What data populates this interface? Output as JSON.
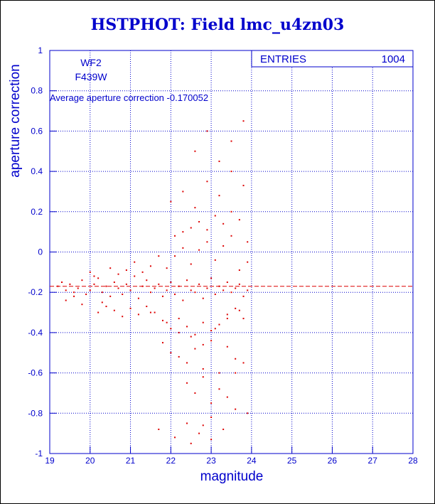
{
  "title": "HSTPHOT: Field lmc_u4zn03",
  "stats_box": {
    "label": "ENTRIES",
    "value": "1004"
  },
  "annotations": {
    "chip": "WF2",
    "filter": "F439W",
    "average": "Average aperture correction -0.170052"
  },
  "colors": {
    "axis": "#0000cc",
    "points": "#dd0000",
    "frame": "#000000"
  },
  "chart_data": {
    "type": "scatter",
    "title": "HSTPHOT: Field lmc_u4zn03",
    "xlabel": "magnitude",
    "ylabel": "aperture correction",
    "xlim": [
      19,
      28
    ],
    "ylim": [
      -1,
      1
    ],
    "xticks": [
      "19",
      "20",
      "21",
      "22",
      "23",
      "24",
      "25",
      "26",
      "27",
      "28"
    ],
    "yticks": [
      "-1",
      "-0.8",
      "-0.6",
      "-0.4",
      "-0.2",
      "0",
      "0.2",
      "0.4",
      "0.6",
      "0.8",
      "1"
    ],
    "grid": true,
    "reference_line": {
      "y": -0.170052,
      "style": "dashed"
    },
    "entries": 1004,
    "series": [
      {
        "x": [
          19.2,
          19.3,
          19.4,
          19.5,
          19.6,
          19.7,
          19.8,
          19.9,
          20.0,
          20.1,
          20.2,
          20.3,
          20.4,
          20.5,
          20.6,
          20.7,
          20.8,
          20.9,
          21.0,
          21.1,
          21.2,
          21.3,
          21.4,
          21.5,
          21.6,
          21.7,
          21.8,
          21.9,
          22.0,
          22.1,
          22.2,
          22.3,
          22.4,
          22.5,
          22.6,
          22.7,
          22.8,
          22.9,
          23.0,
          23.1,
          23.2,
          23.3,
          23.4,
          23.5,
          23.6,
          23.7,
          23.8,
          23.9,
          19.4,
          19.8,
          20.1,
          20.4,
          20.7,
          21.0,
          21.3,
          21.6,
          21.9,
          22.2,
          22.5,
          22.8,
          23.1,
          23.4,
          23.7,
          20.0,
          20.3,
          20.6,
          20.9,
          21.2,
          21.5,
          21.8,
          22.1,
          22.4,
          22.7,
          23.0,
          23.3,
          23.6,
          23.9,
          19.6,
          20.2,
          20.5,
          20.8,
          21.1,
          21.4,
          21.7,
          22.0,
          22.3,
          22.6,
          22.9,
          23.2,
          23.5,
          23.8,
          21.8,
          22.0,
          22.2,
          22.4,
          22.6,
          22.8,
          23.0,
          23.2,
          23.4,
          23.6,
          22.1,
          22.3,
          22.5,
          22.7,
          22.9,
          23.1,
          23.3,
          23.5,
          23.7,
          23.9,
          22.4,
          22.6,
          22.8,
          23.0,
          23.2,
          23.4,
          23.6,
          23.8,
          21.5,
          21.9,
          22.2,
          22.5,
          22.8,
          23.1,
          23.4,
          23.7,
          22.0,
          22.3,
          22.6,
          22.9,
          23.2,
          23.5,
          23.8,
          22.4,
          22.7,
          23.0,
          23.3,
          23.6,
          23.9,
          22.6,
          22.9,
          23.2,
          23.5,
          23.8,
          21.7,
          22.1,
          22.5,
          22.8,
          23.0
        ],
        "y": [
          -0.17,
          -0.15,
          -0.19,
          -0.16,
          -0.2,
          -0.18,
          -0.14,
          -0.21,
          -0.19,
          -0.16,
          -0.13,
          -0.2,
          -0.17,
          -0.22,
          -0.15,
          -0.18,
          -0.21,
          -0.16,
          -0.19,
          -0.12,
          -0.23,
          -0.17,
          -0.14,
          -0.2,
          -0.18,
          -0.16,
          -0.22,
          -0.19,
          -0.15,
          -0.21,
          -0.17,
          -0.24,
          -0.14,
          -0.19,
          -0.2,
          -0.16,
          -0.23,
          -0.18,
          -0.13,
          -0.21,
          -0.17,
          -0.19,
          -0.15,
          -0.2,
          -0.18,
          -0.16,
          -0.22,
          -0.19,
          -0.24,
          -0.26,
          -0.12,
          -0.27,
          -0.11,
          -0.28,
          -0.1,
          -0.3,
          -0.08,
          -0.33,
          -0.06,
          -0.35,
          -0.04,
          -0.31,
          -0.09,
          -0.1,
          -0.25,
          -0.29,
          -0.09,
          -0.31,
          -0.07,
          -0.34,
          -0.02,
          -0.37,
          0.01,
          -0.39,
          0.03,
          -0.28,
          -0.05,
          -0.22,
          -0.3,
          -0.08,
          -0.32,
          -0.05,
          -0.27,
          -0.02,
          -0.38,
          0.02,
          -0.41,
          0.05,
          -0.36,
          0.08,
          -0.33,
          -0.45,
          -0.5,
          -0.52,
          -0.55,
          -0.48,
          -0.58,
          -0.44,
          -0.6,
          -0.47,
          -0.53,
          0.08,
          0.1,
          0.12,
          0.15,
          0.11,
          0.18,
          0.14,
          0.2,
          0.16,
          0.05,
          -0.65,
          -0.7,
          -0.62,
          -0.75,
          -0.68,
          -0.72,
          -0.6,
          -0.55,
          -0.3,
          -0.35,
          -0.4,
          -0.42,
          -0.46,
          -0.38,
          -0.33,
          -0.29,
          0.25,
          0.3,
          0.22,
          0.35,
          0.28,
          0.4,
          0.33,
          -0.85,
          -0.9,
          -0.82,
          -0.88,
          -0.78,
          -0.8,
          0.5,
          0.6,
          0.45,
          0.55,
          0.65,
          -0.88,
          -0.92,
          -0.95,
          -0.86,
          -0.93
        ]
      }
    ]
  }
}
